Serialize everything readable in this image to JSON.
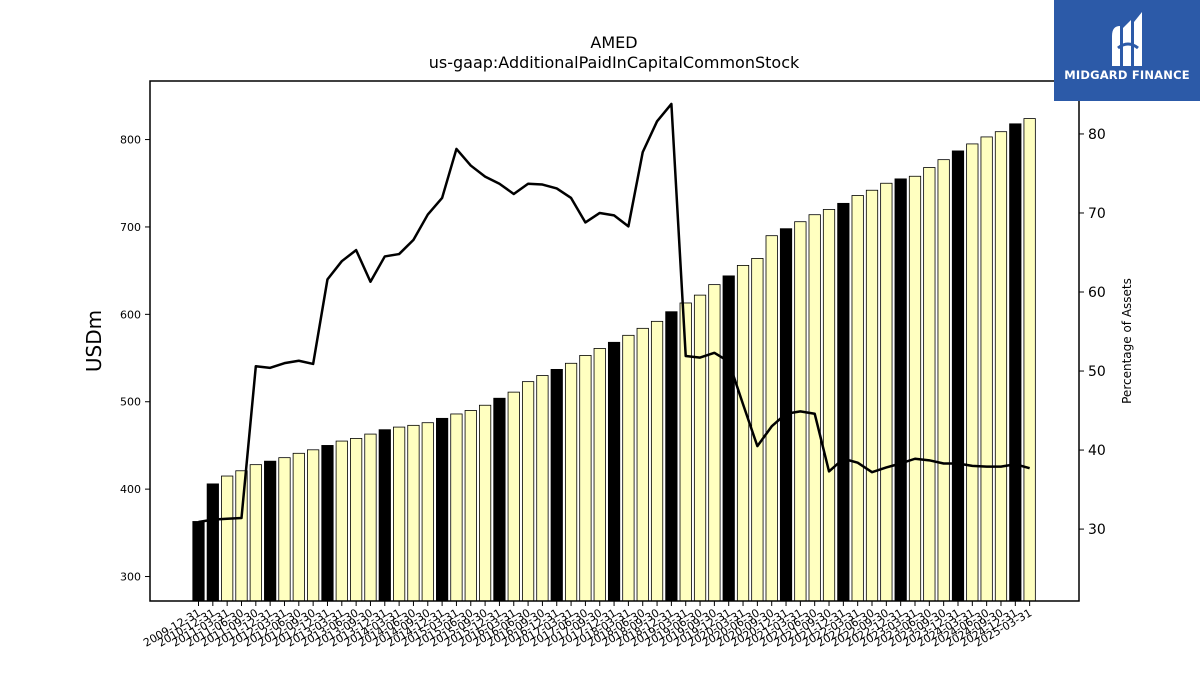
{
  "chart_data": {
    "type": "bar",
    "title": "AMED",
    "subtitle": "us-gaap:AdditionalPaidInCapitalCommonStock",
    "ylabel": "USDm",
    "y2label": "Percentage of Assets",
    "ylim": [
      272,
      867
    ],
    "y2lim": [
      20.9,
      86.7
    ],
    "yticks": [
      300,
      400,
      500,
      600,
      700,
      800
    ],
    "y2ticks": [
      30,
      40,
      50,
      60,
      70,
      80
    ],
    "colors": {
      "q4_bar": "#000000",
      "other_bar": "#ffffc0",
      "line": "#000000",
      "logo_bg": "#2c5aa8"
    },
    "categories": [
      "2009-12-31",
      "2010-12-31",
      "2011-03-31",
      "2011-06-30",
      "2011-09-30",
      "2011-12-31",
      "2012-03-31",
      "2012-06-30",
      "2012-09-30",
      "2012-12-31",
      "2013-03-31",
      "2013-06-30",
      "2013-09-30",
      "2013-12-31",
      "2014-03-31",
      "2014-06-30",
      "2014-09-30",
      "2014-12-31",
      "2015-03-31",
      "2015-06-30",
      "2015-09-30",
      "2015-12-31",
      "2016-03-31",
      "2016-06-30",
      "2016-09-30",
      "2016-12-31",
      "2017-03-31",
      "2017-06-30",
      "2017-09-30",
      "2017-12-31",
      "2018-03-31",
      "2018-06-30",
      "2018-09-30",
      "2018-12-31",
      "2019-03-31",
      "2019-06-30",
      "2019-09-30",
      "2019-12-31",
      "2020-03-31",
      "2020-06-30",
      "2020-09-30",
      "2020-12-31",
      "2021-03-31",
      "2021-06-30",
      "2021-09-30",
      "2021-12-31",
      "2022-03-31",
      "2022-06-30",
      "2022-09-30",
      "2022-12-31",
      "2023-03-31",
      "2023-06-30",
      "2023-09-30",
      "2023-12-31",
      "2024-03-31",
      "2024-06-30",
      "2024-09-30",
      "2024-12-31",
      "2025-03-31"
    ],
    "series": [
      {
        "type": "bar",
        "values": [
          363,
          406,
          415,
          421,
          428,
          432,
          436,
          441,
          445,
          450,
          455,
          458,
          463,
          468,
          471,
          473,
          476,
          481,
          486,
          490,
          496,
          504,
          511,
          523,
          530,
          537,
          544,
          553,
          561,
          568,
          576,
          584,
          592,
          603,
          613,
          622,
          634,
          644,
          656,
          664,
          690,
          698,
          706,
          714,
          720,
          727,
          736,
          742,
          750,
          755,
          758,
          768,
          777,
          787,
          795,
          803,
          809,
          818,
          824
        ]
      },
      {
        "type": "line",
        "values": [
          30.9,
          31.2,
          31.3,
          31.4,
          50.6,
          50.4,
          51.0,
          51.3,
          50.9,
          61.6,
          63.9,
          65.3,
          61.3,
          64.5,
          64.8,
          66.6,
          69.8,
          71.9,
          78.1,
          76.0,
          74.6,
          73.7,
          72.4,
          73.7,
          73.6,
          73.1,
          71.9,
          68.8,
          70.0,
          69.7,
          68.3,
          77.7,
          81.6,
          83.8,
          51.9,
          51.7,
          52.3,
          51.2,
          45.8,
          40.5,
          43.0,
          44.6,
          44.9,
          44.6,
          37.3,
          38.9,
          38.4,
          37.2,
          37.8,
          38.3,
          38.9,
          38.7,
          38.3,
          38.3,
          38.0,
          37.9,
          37.9,
          38.2,
          37.7
        ]
      }
    ]
  },
  "logo": {
    "text": "MIDGARD FINANCE"
  }
}
